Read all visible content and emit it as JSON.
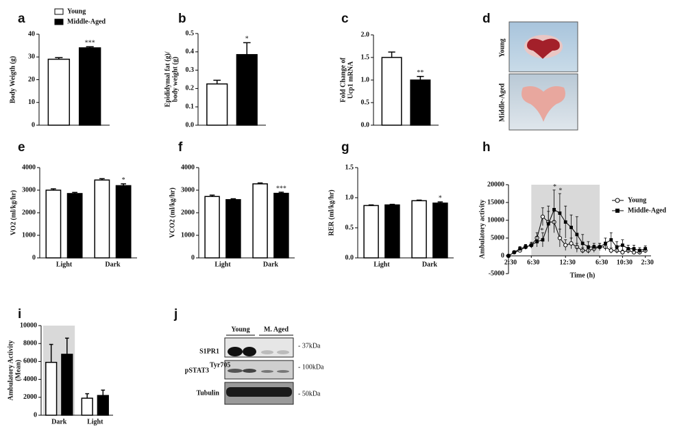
{
  "chart_data": [
    {
      "panel": "a",
      "type": "bar",
      "ylabel": "Body Weigth (g)",
      "ylim": [
        0,
        40
      ],
      "yticks": [
        0,
        10,
        20,
        30,
        40
      ],
      "series": [
        {
          "name": "Young",
          "color": "#ffffff",
          "values": [
            29
          ],
          "errors": [
            0.7
          ]
        },
        {
          "name": "Middle-Aged",
          "color": "#000000",
          "values": [
            34
          ],
          "errors": [
            0.5
          ]
        }
      ],
      "annotations": [
        {
          "text": "***",
          "series": 1,
          "index": 0
        }
      ],
      "legend": true
    },
    {
      "panel": "b",
      "type": "bar",
      "ylabel": [
        "Epididymal fat (g)/",
        "body weight (g)"
      ],
      "ylim": [
        0,
        0.5
      ],
      "yticks": [
        {
          "value": 0,
          "label": "0.0"
        },
        0.1,
        0.2,
        0.3,
        0.4,
        0.5
      ],
      "series": [
        {
          "color": "#ffffff",
          "values": [
            0.225
          ],
          "errors": [
            0.02
          ]
        },
        {
          "color": "#000000",
          "values": [
            0.385
          ],
          "errors": [
            0.065
          ]
        }
      ],
      "annotations": [
        {
          "text": "*",
          "series": 1,
          "index": 0
        }
      ]
    },
    {
      "panel": "c",
      "type": "bar",
      "ylabel": [
        "Fold Change of",
        "Ucp1 mRNA"
      ],
      "ylim": [
        0,
        2
      ],
      "yticks": [
        {
          "value": 0,
          "label": "0.0"
        },
        0.5,
        {
          "value": 1,
          "label": "1.0"
        },
        1.5,
        {
          "value": 2,
          "label": "2.0"
        }
      ],
      "series": [
        {
          "color": "#ffffff",
          "values": [
            1.5
          ],
          "errors": [
            0.12
          ]
        },
        {
          "color": "#000000",
          "values": [
            1.0
          ],
          "errors": [
            0.08
          ]
        }
      ],
      "annotations": [
        {
          "text": "**",
          "series": 1,
          "index": 0
        }
      ]
    },
    {
      "panel": "e",
      "type": "bar",
      "ylabel": "VO2 (ml/kg/hr)",
      "ylim": [
        0,
        4000
      ],
      "yticks": [
        0,
        1000,
        2000,
        3000,
        4000
      ],
      "categories": [
        "Light",
        "Dark"
      ],
      "series": [
        {
          "color": "#ffffff",
          "values": [
            3000,
            3450
          ],
          "errors": [
            60,
            60
          ]
        },
        {
          "color": "#000000",
          "values": [
            2850,
            3200
          ],
          "errors": [
            50,
            80
          ]
        }
      ],
      "annotations": [
        {
          "text": "*",
          "series": 1,
          "index": 1
        }
      ]
    },
    {
      "panel": "f",
      "type": "bar",
      "ylabel": "VCO2 (ml/kg/hr)",
      "ylim": [
        0,
        4000
      ],
      "yticks": [
        0,
        1000,
        2000,
        3000,
        4000
      ],
      "categories": [
        "Light",
        "Dark"
      ],
      "series": [
        {
          "color": "#ffffff",
          "values": [
            2720,
            3280
          ],
          "errors": [
            60,
            40
          ]
        },
        {
          "color": "#000000",
          "values": [
            2580,
            2860
          ],
          "errors": [
            40,
            50
          ]
        }
      ],
      "annotations": [
        {
          "text": "***",
          "series": 1,
          "index": 1
        }
      ]
    },
    {
      "panel": "g",
      "type": "bar",
      "ylabel": "RER (ml/kg/hr)",
      "ylim": [
        0,
        1.5
      ],
      "yticks": [
        {
          "value": 0,
          "label": "0.0"
        },
        0.5,
        {
          "value": 1,
          "label": "1.0"
        },
        1.5
      ],
      "categories": [
        "Light",
        "Dark"
      ],
      "series": [
        {
          "color": "#ffffff",
          "values": [
            0.87,
            0.95
          ],
          "errors": [
            0.01,
            0.01
          ]
        },
        {
          "color": "#000000",
          "values": [
            0.88,
            0.91
          ],
          "errors": [
            0.01,
            0.02
          ]
        }
      ],
      "annotations": [
        {
          "text": "*",
          "series": 1,
          "index": 1
        }
      ]
    },
    {
      "panel": "h",
      "type": "line",
      "ylabel": "Ambulatory activity",
      "xlabel": "Time (h)",
      "ylim": [
        -5000,
        20000
      ],
      "yticks": [
        -5000,
        0,
        5000,
        10000,
        15000,
        20000
      ],
      "xlim": [
        0,
        25
      ],
      "xticks": [
        {
          "value": 0,
          "label": "2:30"
        },
        {
          "value": 4,
          "label": "6:30"
        },
        {
          "value": 10,
          "label": "12:30"
        },
        {
          "value": 16,
          "label": "6:30"
        },
        {
          "value": 20,
          "label": "10:30"
        },
        {
          "value": 24,
          "label": "2:30"
        }
      ],
      "shaded_x": [
        4,
        16
      ],
      "x": [
        0,
        1,
        2,
        3,
        4,
        5,
        6,
        7,
        8,
        9,
        10,
        11,
        12,
        13,
        14,
        15,
        16,
        17,
        18,
        19,
        20,
        21,
        22,
        23,
        24
      ],
      "series": [
        {
          "name": "Young",
          "color": "#000000",
          "marker": "open-circle",
          "values": [
            0,
            1000,
            1500,
            2500,
            3000,
            5000,
            11000,
            9500,
            9500,
            5000,
            3000,
            3500,
            2500,
            1500,
            1500,
            2000,
            2500,
            2500,
            1500,
            1500,
            1000,
            1500,
            1000,
            1000,
            1500
          ],
          "errors": [
            0,
            300,
            500,
            600,
            800,
            1500,
            2500,
            3000,
            3000,
            2500,
            1500,
            1500,
            1000,
            800,
            800,
            1000,
            1000,
            1000,
            800,
            800,
            600,
            800,
            600,
            600,
            700
          ]
        },
        {
          "name": "Middle-Aged",
          "color": "#000000",
          "marker": "filled-square",
          "values": [
            0,
            1000,
            2000,
            2500,
            3000,
            4000,
            4500,
            9000,
            13000,
            12000,
            9500,
            8000,
            6000,
            3500,
            2500,
            2500,
            2500,
            3500,
            4500,
            2500,
            3000,
            2000,
            2000,
            1500,
            2000
          ],
          "errors": [
            0,
            400,
            600,
            700,
            800,
            1500,
            2000,
            5000,
            5500,
            5500,
            4500,
            3500,
            5000,
            2500,
            1500,
            1000,
            1000,
            1500,
            2000,
            1500,
            1500,
            1000,
            1000,
            800,
            800
          ]
        }
      ],
      "annotations": [
        {
          "text": "*",
          "series": 1,
          "index": 8
        },
        {
          "text": "*",
          "series": 1,
          "index": 9
        },
        {
          "text": "*",
          "series": 0,
          "index": 6
        }
      ],
      "legend": true
    },
    {
      "panel": "i",
      "type": "bar",
      "ylabel": [
        "Ambulatory Activity",
        "(Mean)"
      ],
      "ylim": [
        0,
        10000
      ],
      "yticks": [
        0,
        2000,
        4000,
        6000,
        8000,
        10000
      ],
      "categories": [
        "Dark",
        "Light"
      ],
      "shaded_groups": [
        0
      ],
      "series": [
        {
          "color": "#ffffff",
          "values": [
            5900,
            1900
          ],
          "errors": [
            2000,
            500
          ]
        },
        {
          "color": "#000000",
          "values": [
            6800,
            2200
          ],
          "errors": [
            1800,
            600
          ]
        }
      ]
    }
  ],
  "photo": {
    "panel": "d",
    "rows": [
      "Young",
      "Middle-Aged"
    ]
  },
  "blot": {
    "panel": "j",
    "groups": [
      "Young",
      "M. Aged"
    ],
    "rows": [
      "S1PR1",
      "pSTAT3",
      "Tubulin"
    ],
    "superscript": "Tyr705",
    "sizes": [
      "- 37kDa",
      "- 100kDa",
      "- 50kDa"
    ]
  }
}
